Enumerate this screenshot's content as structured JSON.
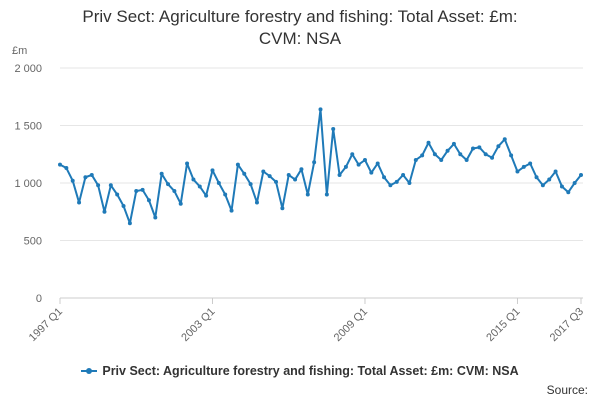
{
  "colors": {
    "series": "#1f7ab8",
    "grid": "#e6e6e6",
    "axis": "#cccccc",
    "text": "#666666"
  },
  "chart_data": {
    "type": "line",
    "title_line1": "Priv Sect: Agriculture forestry and fishing: Total Asset: £m:",
    "title_line2": "CVM: NSA",
    "ylabel": "£m",
    "ylim": [
      0,
      2000
    ],
    "yticks": [
      0,
      500,
      1000,
      1500,
      2000
    ],
    "ytick_labels": [
      "0",
      "500",
      "1 000",
      "1 500",
      "2 000"
    ],
    "xtick_labels": [
      "1997 Q1",
      "2003 Q1",
      "2009 Q1",
      "2015 Q1",
      "2017 Q3"
    ],
    "xtick_index": [
      0,
      24,
      48,
      72,
      82
    ],
    "grid": true,
    "legend_position": "bottom",
    "x": [
      "1997 Q1",
      "1997 Q2",
      "1997 Q3",
      "1997 Q4",
      "1998 Q1",
      "1998 Q2",
      "1998 Q3",
      "1998 Q4",
      "1999 Q1",
      "1999 Q2",
      "1999 Q3",
      "1999 Q4",
      "2000 Q1",
      "2000 Q2",
      "2000 Q3",
      "2000 Q4",
      "2001 Q1",
      "2001 Q2",
      "2001 Q3",
      "2001 Q4",
      "2002 Q1",
      "2002 Q2",
      "2002 Q3",
      "2002 Q4",
      "2003 Q1",
      "2003 Q2",
      "2003 Q3",
      "2003 Q4",
      "2004 Q1",
      "2004 Q2",
      "2004 Q3",
      "2004 Q4",
      "2005 Q1",
      "2005 Q2",
      "2005 Q3",
      "2005 Q4",
      "2006 Q1",
      "2006 Q2",
      "2006 Q3",
      "2006 Q4",
      "2007 Q1",
      "2007 Q2",
      "2007 Q3",
      "2007 Q4",
      "2008 Q1",
      "2008 Q2",
      "2008 Q3",
      "2008 Q4",
      "2009 Q1",
      "2009 Q2",
      "2009 Q3",
      "2009 Q4",
      "2010 Q1",
      "2010 Q2",
      "2010 Q3",
      "2010 Q4",
      "2011 Q1",
      "2011 Q2",
      "2011 Q3",
      "2011 Q4",
      "2012 Q1",
      "2012 Q2",
      "2012 Q3",
      "2012 Q4",
      "2013 Q1",
      "2013 Q2",
      "2013 Q3",
      "2013 Q4",
      "2014 Q1",
      "2014 Q2",
      "2014 Q3",
      "2014 Q4",
      "2015 Q1",
      "2015 Q2",
      "2015 Q3",
      "2015 Q4",
      "2016 Q1",
      "2016 Q2",
      "2016 Q3",
      "2016 Q4",
      "2017 Q1",
      "2017 Q2",
      "2017 Q3"
    ],
    "series": [
      {
        "name": "Priv Sect: Agriculture forestry and fishing: Total Asset: £m: CVM: NSA",
        "values": [
          1160,
          1130,
          1020,
          830,
          1050,
          1070,
          980,
          750,
          980,
          900,
          800,
          650,
          930,
          940,
          850,
          700,
          1080,
          990,
          930,
          820,
          1170,
          1030,
          970,
          890,
          1110,
          1000,
          900,
          760,
          1160,
          1080,
          990,
          830,
          1100,
          1060,
          1010,
          780,
          1070,
          1030,
          1120,
          900,
          1180,
          1640,
          900,
          1470,
          1070,
          1140,
          1250,
          1160,
          1200,
          1090,
          1170,
          1050,
          980,
          1010,
          1070,
          1000,
          1200,
          1240,
          1350,
          1250,
          1200,
          1280,
          1340,
          1250,
          1200,
          1300,
          1310,
          1250,
          1220,
          1320,
          1380,
          1240,
          1100,
          1140,
          1170,
          1050,
          980,
          1030,
          1100,
          970,
          920,
          1000,
          1070
        ]
      }
    ]
  },
  "source_label": "Source:"
}
